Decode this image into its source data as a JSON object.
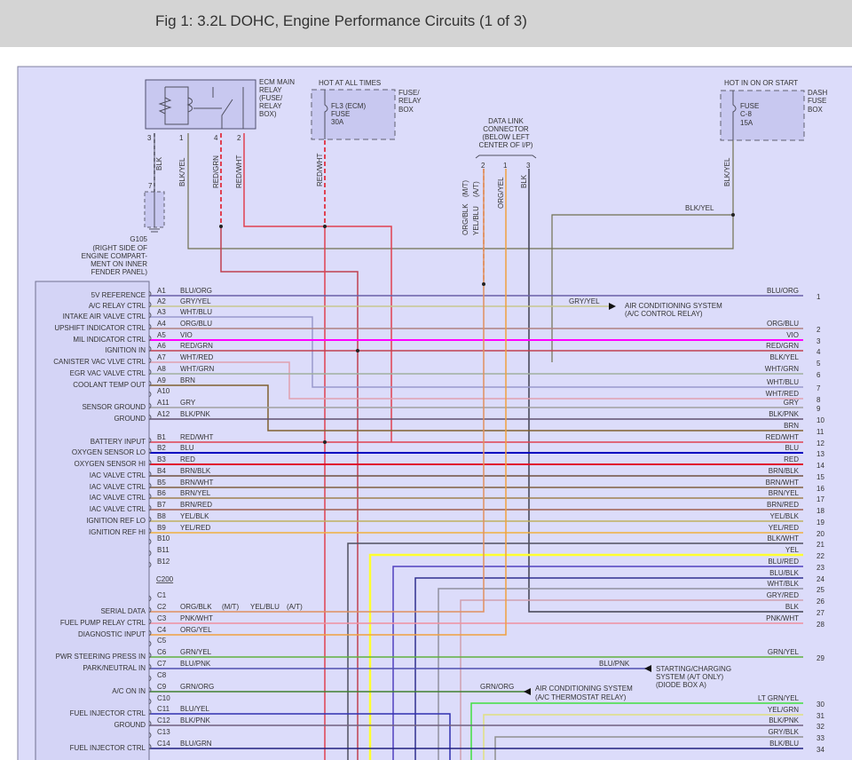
{
  "title": "Fig 1: 3.2L DOHC, Engine Performance Circuits (1 of 3)",
  "relay": {
    "name": [
      "ECM MAIN",
      "RELAY",
      "(FUSE/",
      "RELAY",
      "BOX)"
    ],
    "pins": [
      "3",
      "1",
      "4",
      "2"
    ],
    "wires": [
      "BLK",
      "BLK/YEL",
      "RED/GRN",
      "RED/WHT"
    ]
  },
  "ground": {
    "pin": "7",
    "name": [
      "G105",
      "(RIGHT SIDE OF",
      "ENGINE COMPART-",
      "MENT ON INNER",
      "FENDER PANEL)"
    ]
  },
  "fusebox": {
    "hot": "HOT AT ALL TIMES",
    "fuse": [
      "FL3 (ECM)",
      "FUSE",
      "30A"
    ],
    "box": [
      "FUSE/",
      "RELAY",
      "BOX"
    ],
    "wire": "RED/WHT"
  },
  "dashfuse": {
    "hot": "HOT IN ON OR START",
    "fuse": [
      "FUSE",
      "C-8",
      "15A"
    ],
    "box": [
      "DASH",
      "FUSE",
      "BOX"
    ],
    "wire": "BLK/YEL",
    "wire2": "BLK/YEL"
  },
  "dlc": {
    "name": [
      "DATA LINK",
      "CONNECTOR",
      "(BELOW LEFT",
      "CENTER OF I/P)"
    ],
    "pins": [
      "2",
      "1",
      "3"
    ],
    "wires": [
      "ORG/BLK",
      "(M/T)",
      "YEL/BLU",
      "(A/T)",
      "ORG/YEL",
      "BLK"
    ]
  },
  "connector_label": "C200",
  "serial_alt": {
    "mt": "(M/T)",
    "alt": "YEL/BLU",
    "at": "(A/T)"
  },
  "pins": [
    {
      "pin": "A1",
      "func": "5V REFERENCE",
      "wire": "BLU/ORG",
      "color": "#6a5fa8"
    },
    {
      "pin": "A2",
      "func": "A/C RELAY CTRL",
      "wire": "GRY/YEL",
      "color": "#c8c890"
    },
    {
      "pin": "A3",
      "func": "INTAKE AIR VALVE CTRL",
      "wire": "WHT/BLU",
      "color": "#9999cc"
    },
    {
      "pin": "A4",
      "func": "UPSHIFT INDICATOR CTRL",
      "wire": "ORG/BLU",
      "color": "#b08080"
    },
    {
      "pin": "A5",
      "func": "MIL INDICATOR CTRL",
      "wire": "VIO",
      "color": "#ff00ff"
    },
    {
      "pin": "A6",
      "func": "IGNITION IN",
      "wire": "RED/GRN",
      "color": "#c04050"
    },
    {
      "pin": "A7",
      "func": "CANISTER VAC VLVE CTRL",
      "wire": "WHT/RED",
      "color": "#e0a0b0"
    },
    {
      "pin": "A8",
      "func": "EGR VAC VALVE CTRL",
      "wire": "WHT/GRN",
      "color": "#a0b0a0"
    },
    {
      "pin": "A9",
      "func": "COOLANT TEMP OUT",
      "wire": "BRN",
      "color": "#806030"
    },
    {
      "pin": "A10",
      "func": "",
      "wire": "",
      "color": ""
    },
    {
      "pin": "A11",
      "func": "SENSOR GROUND",
      "wire": "GRY",
      "color": "#a0a0a0"
    },
    {
      "pin": "A12",
      "func": "GROUND",
      "wire": "BLK/PNK",
      "color": "#605070"
    },
    {
      "pin": "B1",
      "func": "BATTERY INPUT",
      "wire": "RED/WHT",
      "color": "#e04050"
    },
    {
      "pin": "B2",
      "func": "OXYGEN SENSOR LO",
      "wire": "BLU",
      "color": "#0000c0"
    },
    {
      "pin": "B3",
      "func": "OXYGEN SENSOR HI",
      "wire": "RED",
      "color": "#e01030"
    },
    {
      "pin": "B4",
      "func": "IAC VALVE CTRL",
      "wire": "BRN/BLK",
      "color": "#705040"
    },
    {
      "pin": "B5",
      "func": "IAC VALVE CTRL",
      "wire": "BRN/WHT",
      "color": "#806040"
    },
    {
      "pin": "B6",
      "func": "IAC VALVE CTRL",
      "wire": "BRN/YEL",
      "color": "#a08050"
    },
    {
      "pin": "B7",
      "func": "IAC VALVE CTRL",
      "wire": "BRN/RED",
      "color": "#a06050"
    },
    {
      "pin": "B8",
      "func": "IGNITION REF LO",
      "wire": "YEL/BLK",
      "color": "#c0b060"
    },
    {
      "pin": "B9",
      "func": "IGNITION REF HI",
      "wire": "YEL/RED",
      "color": "#f0b040"
    },
    {
      "pin": "B10",
      "func": "",
      "wire": "",
      "color": ""
    },
    {
      "pin": "B11",
      "func": "",
      "wire": "",
      "color": ""
    },
    {
      "pin": "B12",
      "func": "",
      "wire": "",
      "color": ""
    },
    {
      "pin": "C1",
      "func": "",
      "wire": "",
      "color": ""
    },
    {
      "pin": "C2",
      "func": "SERIAL DATA",
      "wire": "ORG/BLK",
      "color": "#e09060"
    },
    {
      "pin": "C3",
      "func": "FUEL PUMP RELAY CTRL",
      "wire": "PNK/WHT",
      "color": "#f090a0"
    },
    {
      "pin": "C4",
      "func": "DIAGNOSTIC INPUT",
      "wire": "ORG/YEL",
      "color": "#f0a040"
    },
    {
      "pin": "C5",
      "func": "",
      "wire": "",
      "color": ""
    },
    {
      "pin": "C6",
      "func": "PWR STEERING PRESS IN",
      "wire": "GRN/YEL",
      "color": "#60b040"
    },
    {
      "pin": "C7",
      "func": "PARK/NEUTRAL IN",
      "wire": "BLU/PNK",
      "color": "#5050b0"
    },
    {
      "pin": "C8",
      "func": "",
      "wire": "",
      "color": ""
    },
    {
      "pin": "C9",
      "func": "A/C ON IN",
      "wire": "GRN/ORG",
      "color": "#408030"
    },
    {
      "pin": "C10",
      "func": "",
      "wire": "",
      "color": ""
    },
    {
      "pin": "C11",
      "func": "FUEL INJECTOR CTRL",
      "wire": "BLU/YEL",
      "color": "#3030b0"
    },
    {
      "pin": "C12",
      "func": "GROUND",
      "wire": "BLK/PNK",
      "color": "#706080"
    },
    {
      "pin": "C13",
      "func": "",
      "wire": "",
      "color": ""
    },
    {
      "pin": "C14",
      "func": "FUEL INJECTOR CTRL",
      "wire": "BLU/GRN",
      "color": "#202080"
    }
  ],
  "right": [
    {
      "num": "1",
      "label": "BLU/ORG",
      "color": "#6a5fa8"
    },
    {
      "num": "2",
      "label": "ORG/BLU",
      "color": "#b08080"
    },
    {
      "num": "3",
      "label": "VIO",
      "color": "#ff00ff"
    },
    {
      "num": "4",
      "label": "RED/GRN",
      "color": "#c04050"
    },
    {
      "num": "5",
      "label": "BLK/YEL",
      "color": "#707050"
    },
    {
      "num": "6",
      "label": "WHT/GRN",
      "color": "#a0b0a0"
    },
    {
      "num": "7",
      "label": "WHT/BLU",
      "color": "#9999cc"
    },
    {
      "num": "8",
      "label": "WHT/RED",
      "color": "#e0a0b0"
    },
    {
      "num": "9",
      "label": "GRY",
      "color": "#a0a0a0"
    },
    {
      "num": "10",
      "label": "BLK/PNK",
      "color": "#605070"
    },
    {
      "num": "11",
      "label": "BRN",
      "color": "#806030"
    },
    {
      "num": "12",
      "label": "RED/WHT",
      "color": "#e04050"
    },
    {
      "num": "13",
      "label": "BLU",
      "color": "#0000c0"
    },
    {
      "num": "14",
      "label": "RED",
      "color": "#e01030"
    },
    {
      "num": "15",
      "label": "BRN/BLK",
      "color": "#705040"
    },
    {
      "num": "16",
      "label": "BRN/WHT",
      "color": "#806040"
    },
    {
      "num": "17",
      "label": "BRN/YEL",
      "color": "#a08050"
    },
    {
      "num": "18",
      "label": "BRN/RED",
      "color": "#a06050"
    },
    {
      "num": "19",
      "label": "YEL/BLK",
      "color": "#c0b060"
    },
    {
      "num": "20",
      "label": "YEL/RED",
      "color": "#f0b040"
    },
    {
      "num": "21",
      "label": "BLK/WHT",
      "color": "#505060"
    },
    {
      "num": "22",
      "label": "YEL",
      "color": "#ffff30"
    },
    {
      "num": "23",
      "label": "BLU/RED",
      "color": "#5040c0"
    },
    {
      "num": "24",
      "label": "BLU/BLK",
      "color": "#303090"
    },
    {
      "num": "25",
      "label": "WHT/BLK",
      "color": "#9090a0"
    },
    {
      "num": "26",
      "label": "GRY/RED",
      "color": "#d0a0b0"
    },
    {
      "num": "27",
      "label": "BLK",
      "color": "#404050"
    },
    {
      "num": "28",
      "label": "PNK/WHT",
      "color": "#f090a0"
    },
    {
      "num": "29",
      "label": "GRN/YEL",
      "color": "#60b040"
    },
    {
      "num": "30",
      "label": "LT GRN/YEL",
      "color": "#40e040"
    },
    {
      "num": "31",
      "label": "YEL/GRN",
      "color": "#e0e080"
    },
    {
      "num": "32",
      "label": "BLK/PNK",
      "color": "#706080"
    },
    {
      "num": "33",
      "label": "GRY/BLK",
      "color": "#909090"
    },
    {
      "num": "34",
      "label": "BLK/BLU",
      "color": "#303060"
    }
  ],
  "arrows": {
    "ac_relay": {
      "wire": "GRY/YEL",
      "text": [
        "AIR CONDITIONING SYSTEM",
        "(A/C CONTROL RELAY)"
      ]
    },
    "starting": {
      "wire": "BLU/PNK",
      "text": [
        "STARTING/CHARGING",
        "SYSTEM (A/T ONLY)",
        "(DIODE BOX A)"
      ]
    },
    "ac_thermo": {
      "wire": "GRN/ORG",
      "text": [
        "AIR CONDITIONING SYSTEM",
        "(A/C THERMOSTAT RELAY)"
      ]
    }
  }
}
